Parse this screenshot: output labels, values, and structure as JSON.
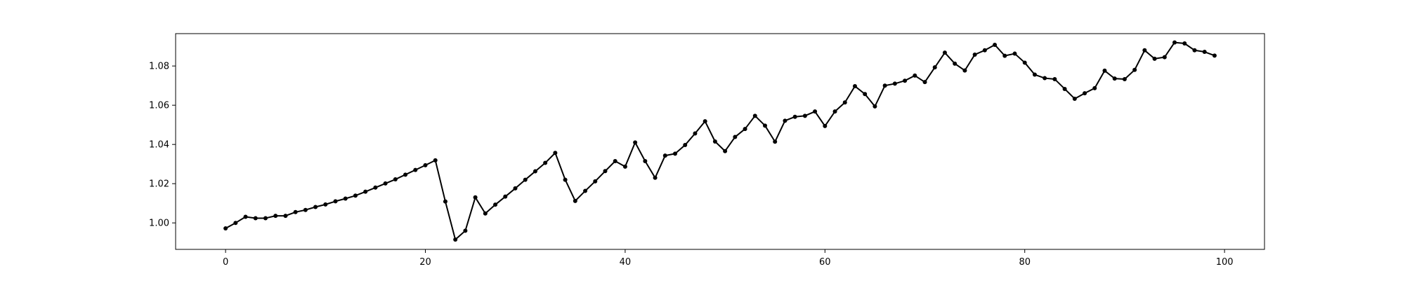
{
  "chart_data": {
    "type": "line",
    "title": "",
    "xlabel": "",
    "ylabel": "",
    "xlim": [
      -5,
      104
    ],
    "ylim": [
      0.9865,
      1.0965
    ],
    "x_ticks": [
      0,
      20,
      40,
      60,
      80,
      100
    ],
    "y_ticks": [
      1.0,
      1.02,
      1.04,
      1.06,
      1.08
    ],
    "x_tick_labels": [
      "0",
      "20",
      "40",
      "60",
      "80",
      "100"
    ],
    "y_tick_labels": [
      "1.00",
      "1.02",
      "1.04",
      "1.06",
      "1.08"
    ],
    "grid": false,
    "legend": "none",
    "line_color": "#000000",
    "marker": "circle",
    "series": [
      {
        "x": [
          0,
          1,
          2,
          3,
          4,
          5,
          6,
          7,
          8,
          9,
          10,
          11,
          12,
          13,
          14,
          15,
          16,
          17,
          18,
          19,
          20,
          21,
          22,
          23,
          24,
          25,
          26,
          27,
          28,
          29,
          30,
          31,
          32,
          33,
          34,
          35,
          36,
          37,
          38,
          39,
          40,
          41,
          42,
          43,
          44,
          45,
          46,
          47,
          48,
          49,
          50,
          51,
          52,
          53,
          54,
          55,
          56,
          57,
          58,
          59,
          60,
          61,
          62,
          63,
          64,
          65,
          66,
          67,
          68,
          69,
          70,
          71,
          72,
          73,
          74,
          75,
          76,
          77,
          78,
          79,
          80,
          81,
          82,
          83,
          84,
          85,
          86,
          87,
          88,
          89,
          90,
          91,
          92,
          93,
          94,
          95,
          96,
          97,
          98,
          99
        ],
        "values": [
          0.9972,
          1.0,
          1.0031,
          1.0024,
          1.0024,
          1.0036,
          1.0036,
          1.0055,
          1.0066,
          1.0081,
          1.0094,
          1.011,
          1.0124,
          1.0139,
          1.0159,
          1.018,
          1.0201,
          1.0222,
          1.0246,
          1.027,
          1.0294,
          1.0319,
          1.0109,
          0.9915,
          0.996,
          1.013,
          1.0048,
          1.0093,
          1.0134,
          1.0176,
          1.022,
          1.0263,
          1.0306,
          1.0357,
          1.022,
          1.0112,
          1.0163,
          1.0212,
          1.0264,
          1.0315,
          1.0287,
          1.041,
          1.0315,
          1.023,
          1.0343,
          1.0353,
          1.0397,
          1.0456,
          1.0518,
          1.0415,
          1.0366,
          1.0438,
          1.0479,
          1.0546,
          1.0496,
          1.0414,
          1.0521,
          1.0541,
          1.0546,
          1.0568,
          1.0494,
          1.0568,
          1.0614,
          1.0697,
          1.0657,
          1.0594,
          1.07,
          1.071,
          1.0725,
          1.0751,
          1.0718,
          1.0793,
          1.0868,
          1.0812,
          1.0777,
          1.0858,
          1.088,
          1.0908,
          1.0852,
          1.0863,
          1.0817,
          1.0756,
          1.0738,
          1.0733,
          1.0683,
          1.0633,
          1.0661,
          1.0687,
          1.0776,
          1.0736,
          1.0733,
          1.078,
          1.088,
          1.0837,
          1.0845,
          1.092,
          1.0915,
          1.088,
          1.0872,
          1.0853
        ]
      }
    ]
  }
}
